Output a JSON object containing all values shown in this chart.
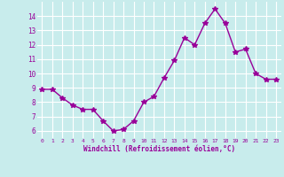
{
  "x": [
    0,
    1,
    2,
    3,
    4,
    5,
    6,
    7,
    8,
    9,
    10,
    11,
    12,
    13,
    14,
    15,
    16,
    17,
    18,
    19,
    20,
    21,
    22,
    23
  ],
  "y": [
    8.9,
    8.9,
    8.3,
    7.8,
    7.5,
    7.5,
    6.7,
    6.0,
    6.1,
    6.7,
    8.0,
    8.4,
    9.7,
    10.9,
    12.5,
    12.0,
    13.5,
    14.5,
    13.5,
    11.5,
    11.7,
    10.0,
    9.6,
    9.6
  ],
  "line_color": "#990099",
  "marker": "*",
  "marker_size": 4,
  "bg_color": "#c8ecec",
  "grid_color": "#ffffff",
  "xlabel": "Windchill (Refroidissement éolien,°C)",
  "xlabel_color": "#990099",
  "tick_color": "#990099",
  "ylim": [
    5.5,
    15.0
  ],
  "xlim": [
    -0.5,
    23.5
  ],
  "yticks": [
    6,
    7,
    8,
    9,
    10,
    11,
    12,
    13,
    14
  ],
  "xticks": [
    0,
    1,
    2,
    3,
    4,
    5,
    6,
    7,
    8,
    9,
    10,
    11,
    12,
    13,
    14,
    15,
    16,
    17,
    18,
    19,
    20,
    21,
    22,
    23
  ]
}
